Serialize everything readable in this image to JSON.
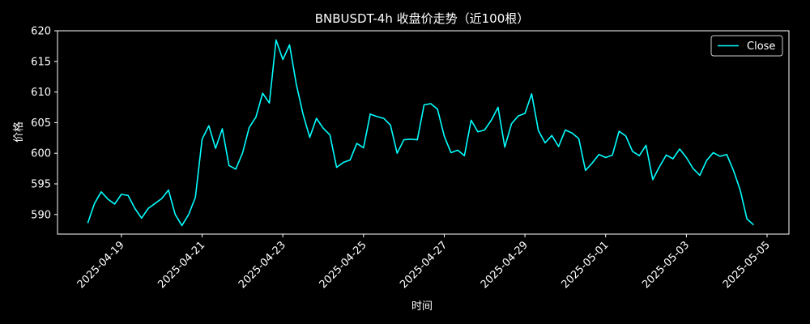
{
  "chart_data": {
    "type": "line",
    "title": "BNBUSDT-4h 收盘价走势（近100根）",
    "xlabel": "时间",
    "ylabel": "价格",
    "x_type": "datetime",
    "xlim": [
      "2025-04-17 10:00",
      "2025-05-05 13:00"
    ],
    "ylim": [
      586.8,
      620
    ],
    "yticks": [
      590,
      595,
      600,
      605,
      610,
      615,
      620
    ],
    "xticks": [
      "2025-04-19",
      "2025-04-21",
      "2025-04-23",
      "2025-04-25",
      "2025-04-27",
      "2025-04-29",
      "2025-05-01",
      "2025-05-03",
      "2025-05-05"
    ],
    "grid": false,
    "legend": "top-right",
    "colors": {
      "background": "#000000",
      "axes": "#ffffff",
      "line": "#00ffff"
    },
    "series": [
      {
        "name": "Close",
        "interval_hours": 4,
        "start": "2025-04-18 04:00",
        "values": [
          588.6,
          591.8,
          593.7,
          592.5,
          591.7,
          593.3,
          593.1,
          591.0,
          589.4,
          591.0,
          591.8,
          592.6,
          594.0,
          590.0,
          588.2,
          590.0,
          592.8,
          602.3,
          604.5,
          600.8,
          604.0,
          598.0,
          597.4,
          600.0,
          604.2,
          605.9,
          609.8,
          608.2,
          618.5,
          615.3,
          617.7,
          611.3,
          606.4,
          602.6,
          605.7,
          604.1,
          603.0,
          597.7,
          598.5,
          598.9,
          601.6,
          600.9,
          606.4,
          606.0,
          605.7,
          604.6,
          600.0,
          602.2,
          602.3,
          602.2,
          607.9,
          608.1,
          607.2,
          602.8,
          600.1,
          600.5,
          599.6,
          605.4,
          603.5,
          603.8,
          605.4,
          607.5,
          601.0,
          604.8,
          606.1,
          606.5,
          609.7,
          603.7,
          601.7,
          602.9,
          601.1,
          603.8,
          603.3,
          602.4,
          597.2,
          598.4,
          599.8,
          599.3,
          599.7,
          603.6,
          602.8,
          600.3,
          599.6,
          601.3,
          595.7,
          597.8,
          599.7,
          599.1,
          600.7,
          599.3,
          597.5,
          596.4,
          598.8,
          600.1,
          599.5,
          599.8,
          597.2,
          594.0,
          589.3,
          588.3
        ]
      }
    ]
  }
}
